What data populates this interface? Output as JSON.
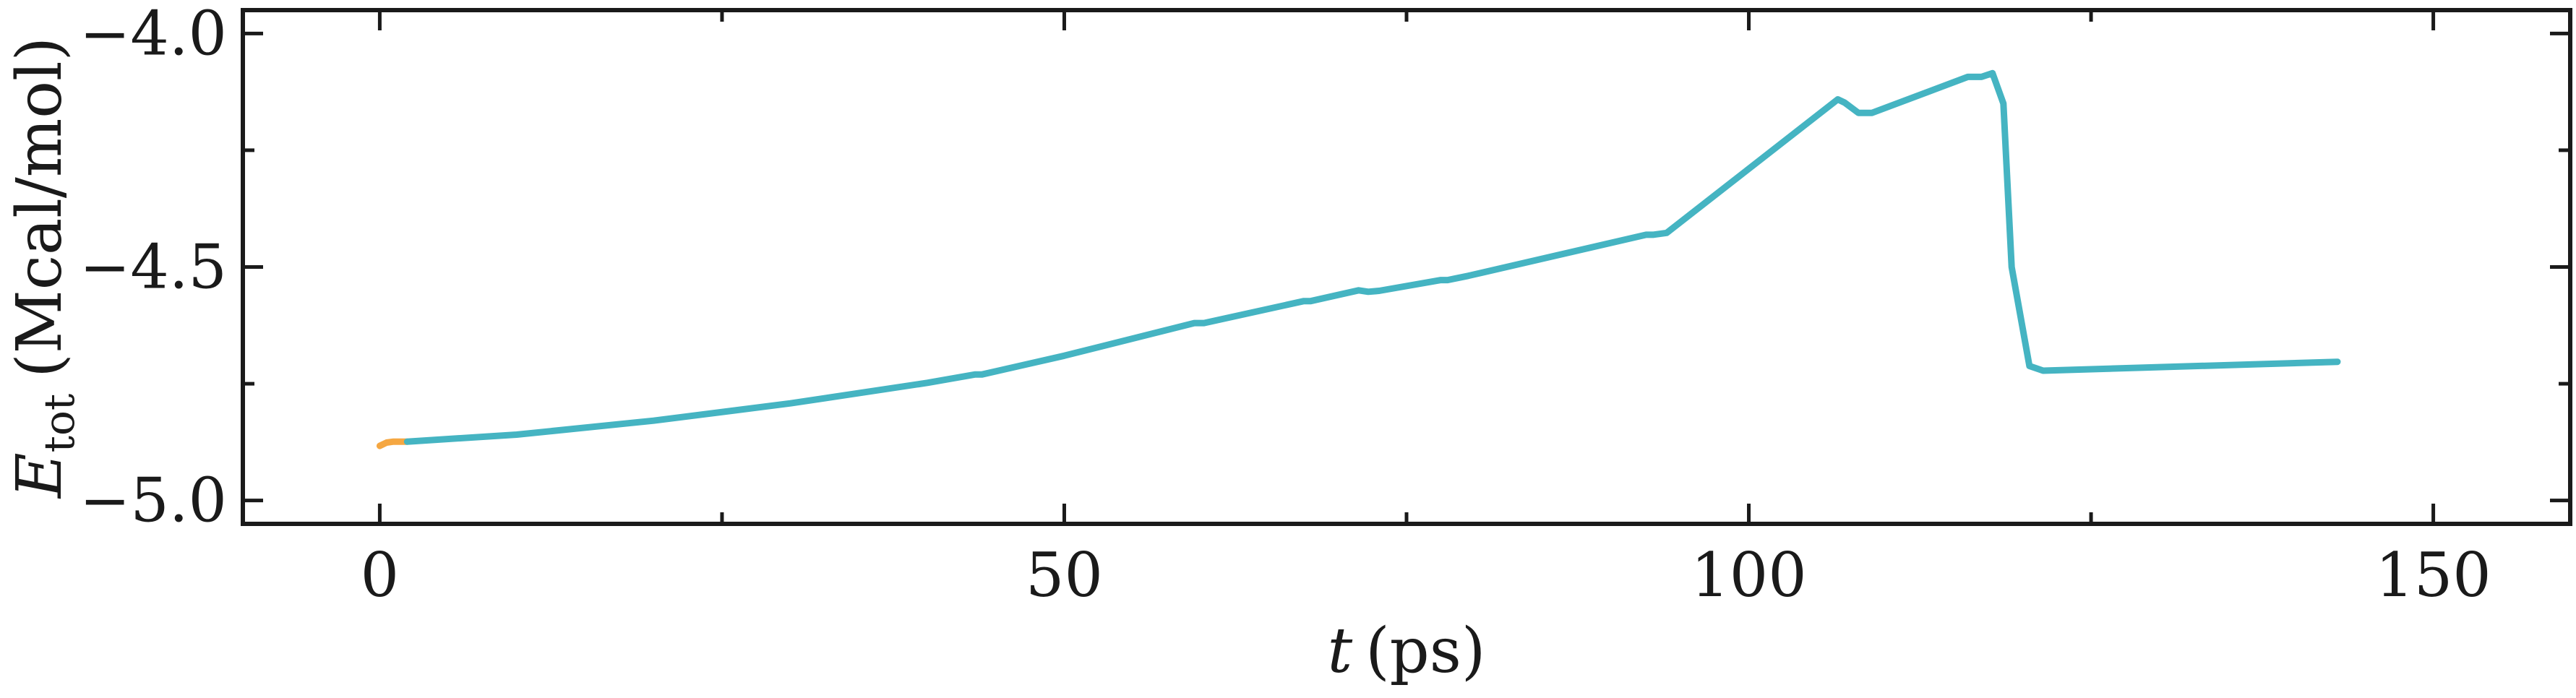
{
  "chart_data": {
    "type": "line",
    "title": "",
    "xlabel": {
      "var": "t",
      "unit": "(ps)"
    },
    "ylabel": {
      "var": "E",
      "sub": "tot",
      "unit": "(Mcal/mol)"
    },
    "xlim": [
      -10,
      160
    ],
    "ylim": [
      -5.05,
      -3.95
    ],
    "xticks_major": [
      0,
      50,
      100,
      150
    ],
    "xticks_minor": [
      25,
      75,
      125
    ],
    "yticks_major": [
      -5.0,
      -4.5,
      -4.0
    ],
    "yticks_minor": [
      -4.75,
      -4.25
    ],
    "xtick_labels": [
      "0",
      "50",
      "100",
      "150"
    ],
    "ytick_labels": [
      "−5.0",
      "−4.5",
      "−4.0"
    ],
    "grid": false,
    "legend": "none",
    "series": [
      {
        "color": "#F5A742",
        "x": [
          0.0,
          0.5,
          1.0,
          2.0
        ],
        "y": [
          -4.883,
          -4.876,
          -4.874,
          -4.874
        ]
      },
      {
        "color": "#45B4C2",
        "x": [
          2.0,
          10,
          20,
          30,
          40,
          43.5,
          44,
          50,
          59.5,
          60.2,
          67.5,
          68,
          71.5,
          72.2,
          73,
          77.5,
          78,
          79.5,
          92.5,
          93,
          94,
          106.5,
          107,
          108,
          109,
          116,
          117,
          117.8,
          118.6,
          119.2,
          120.5,
          121.5,
          143
        ],
        "y": [
          -4.874,
          -4.859,
          -4.829,
          -4.792,
          -4.748,
          -4.73,
          -4.73,
          -4.69,
          -4.62,
          -4.62,
          -4.573,
          -4.573,
          -4.55,
          -4.553,
          -4.551,
          -4.528,
          -4.528,
          -4.519,
          -4.431,
          -4.431,
          -4.427,
          -4.141,
          -4.148,
          -4.17,
          -4.17,
          -4.093,
          -4.093,
          -4.085,
          -4.15,
          -4.5,
          -4.712,
          -4.722,
          -4.703
        ]
      }
    ]
  }
}
